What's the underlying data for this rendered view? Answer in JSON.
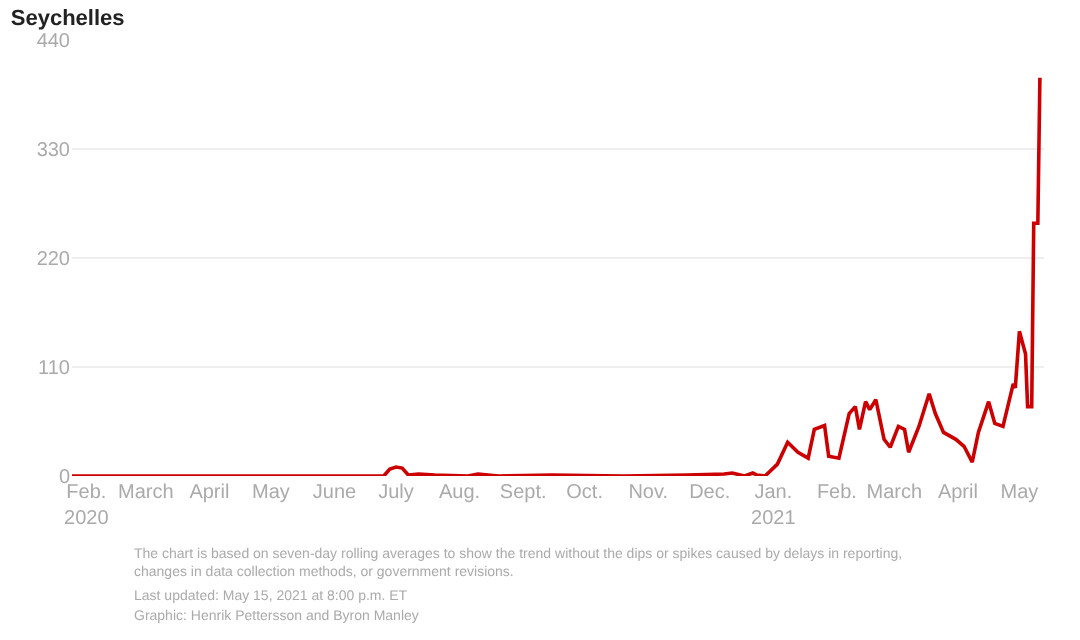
{
  "chart_data": {
    "type": "line",
    "title": "Seychelles",
    "x": [
      "2020-01-25",
      "2020-06-25",
      "2020-06-28",
      "2020-07-01",
      "2020-07-04",
      "2020-07-07",
      "2020-07-12",
      "2020-07-20",
      "2020-08-05",
      "2020-08-10",
      "2020-08-20",
      "2020-09-15",
      "2020-10-20",
      "2020-11-20",
      "2020-12-08",
      "2020-12-12",
      "2020-12-18",
      "2020-12-22",
      "2020-12-24",
      "2020-12-28",
      "2021-01-03",
      "2021-01-08",
      "2021-01-13",
      "2021-01-18",
      "2021-01-21",
      "2021-01-26",
      "2021-01-28",
      "2021-02-02",
      "2021-02-07",
      "2021-02-10",
      "2021-02-12",
      "2021-02-15",
      "2021-02-17",
      "2021-02-20",
      "2021-02-24",
      "2021-02-27",
      "2021-03-03",
      "2021-03-06",
      "2021-03-08",
      "2021-03-13",
      "2021-03-18",
      "2021-03-21",
      "2021-03-25",
      "2021-03-31",
      "2021-04-04",
      "2021-04-08",
      "2021-04-11",
      "2021-04-16",
      "2021-04-19",
      "2021-04-23",
      "2021-04-28",
      "2021-04-29",
      "2021-05-01",
      "2021-05-04",
      "2021-05-05",
      "2021-05-07",
      "2021-05-08",
      "2021-05-10",
      "2021-05-11"
    ],
    "values": [
      0,
      0,
      7,
      9,
      8,
      1,
      2,
      1,
      0,
      2,
      0,
      1,
      0,
      1,
      2,
      3,
      0,
      3,
      1,
      0,
      12,
      34,
      24,
      18,
      47,
      51,
      20,
      18,
      63,
      70,
      47,
      75,
      67,
      77,
      37,
      29,
      50,
      47,
      24,
      50,
      83,
      63,
      44,
      37,
      30,
      14,
      44,
      75,
      53,
      50,
      93,
      89,
      146,
      123,
      70,
      70,
      255,
      255,
      402
    ],
    "color": "#cc0000",
    "xlim": [
      "2020-01-25",
      "2021-05-13"
    ],
    "xticks": [
      {
        "value": "2020-02-01",
        "label": "Feb.\n2020"
      },
      {
        "value": "2020-03-01",
        "label": "March"
      },
      {
        "value": "2020-04-01",
        "label": "April"
      },
      {
        "value": "2020-05-01",
        "label": "May"
      },
      {
        "value": "2020-06-01",
        "label": "June"
      },
      {
        "value": "2020-07-01",
        "label": "July"
      },
      {
        "value": "2020-08-01",
        "label": "Aug."
      },
      {
        "value": "2020-09-01",
        "label": "Sept."
      },
      {
        "value": "2020-10-01",
        "label": "Oct."
      },
      {
        "value": "2020-11-01",
        "label": "Nov."
      },
      {
        "value": "2020-12-01",
        "label": "Dec."
      },
      {
        "value": "2021-01-01",
        "label": "Jan.\n2021"
      },
      {
        "value": "2021-02-01",
        "label": "Feb."
      },
      {
        "value": "2021-03-01",
        "label": "March"
      },
      {
        "value": "2021-04-01",
        "label": "April"
      },
      {
        "value": "2021-05-01",
        "label": "May"
      }
    ],
    "ylim": [
      0,
      440
    ],
    "yticks": [
      0,
      110,
      220,
      330,
      440
    ],
    "grid": "y",
    "marker": "none",
    "line_style": "solid",
    "annotations": [
      "The chart is based on seven-day rolling averages to show the trend without the dips or spikes caused by delays in reporting,\nchanges in data collection methods, or government revisions.",
      "Last updated: May 15, 2021 at 8:00 p.m. ET",
      "Graphic: Henrik Pettersson and Byron Manley"
    ]
  }
}
